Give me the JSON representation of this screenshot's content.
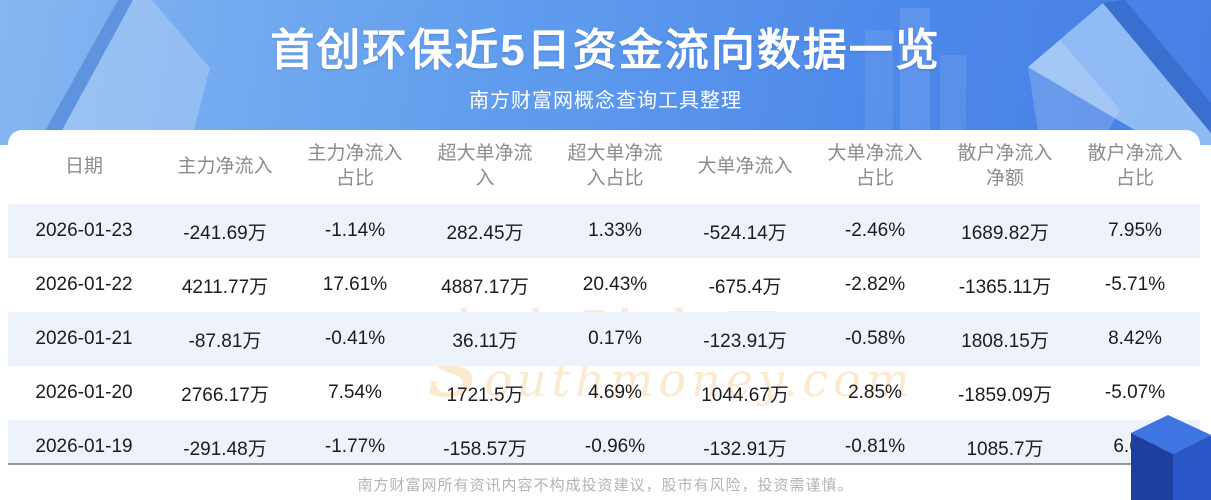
{
  "chart_data": {
    "type": "table",
    "title": "首创环保近5日资金流向数据一览",
    "subtitle": "南方财富网概念查询工具整理",
    "columns": [
      "日期",
      "主力净流入",
      "主力净流入\n占比",
      "超大单净流\n入",
      "超大单净流\n入占比",
      "大单净流入",
      "大单净流入\n占比",
      "散户净流入\n净额",
      "散户净流入\n占比"
    ],
    "rows": [
      [
        "2026-01-23",
        "-241.69万",
        "-1.14%",
        "282.45万",
        "1.33%",
        "-524.14万",
        "-2.46%",
        "1689.82万",
        "7.95%"
      ],
      [
        "2026-01-22",
        "4211.77万",
        "17.61%",
        "4887.17万",
        "20.43%",
        "-675.4万",
        "-2.82%",
        "-1365.11万",
        "-5.71%"
      ],
      [
        "2026-01-21",
        "-87.81万",
        "-0.41%",
        "36.11万",
        "0.17%",
        "-123.91万",
        "-0.58%",
        "1808.15万",
        "8.42%"
      ],
      [
        "2026-01-20",
        "2766.17万",
        "7.54%",
        "1721.5万",
        "4.69%",
        "1044.67万",
        "2.85%",
        "-1859.09万",
        "-5.07%"
      ],
      [
        "2026-01-19",
        "-291.48万",
        "-1.77%",
        "-158.57万",
        "-0.96%",
        "-132.91万",
        "-0.81%",
        "1085.7万",
        "6.6%"
      ]
    ],
    "layout_hints": {
      "zebra_rows": "odd",
      "header_text_color": "#8c8c8c",
      "grid": "off"
    }
  },
  "watermark": {
    "cn": "南方财富网",
    "en": "southmoney.com"
  },
  "footer": {
    "disclaimer": "南方财富网所有资讯内容不构成投资建议，股市有风险，投资需谨慎。"
  },
  "colors": {
    "banner_gradient_start": "#85b6f1",
    "banner_gradient_end": "#477fe4",
    "banner_dark_edge": "#3a6fd0",
    "zebra_row": "#edf2fb",
    "cell_text": "#1c1c1e",
    "header_text": "#8c8c8c",
    "footer_text": "#b3b3b3",
    "watermark_orange": "#f0be78",
    "corner_cube_dark": "#1e3f9e",
    "corner_cube_mid": "#2b56c8",
    "corner_cube_light": "#3f74e3"
  }
}
